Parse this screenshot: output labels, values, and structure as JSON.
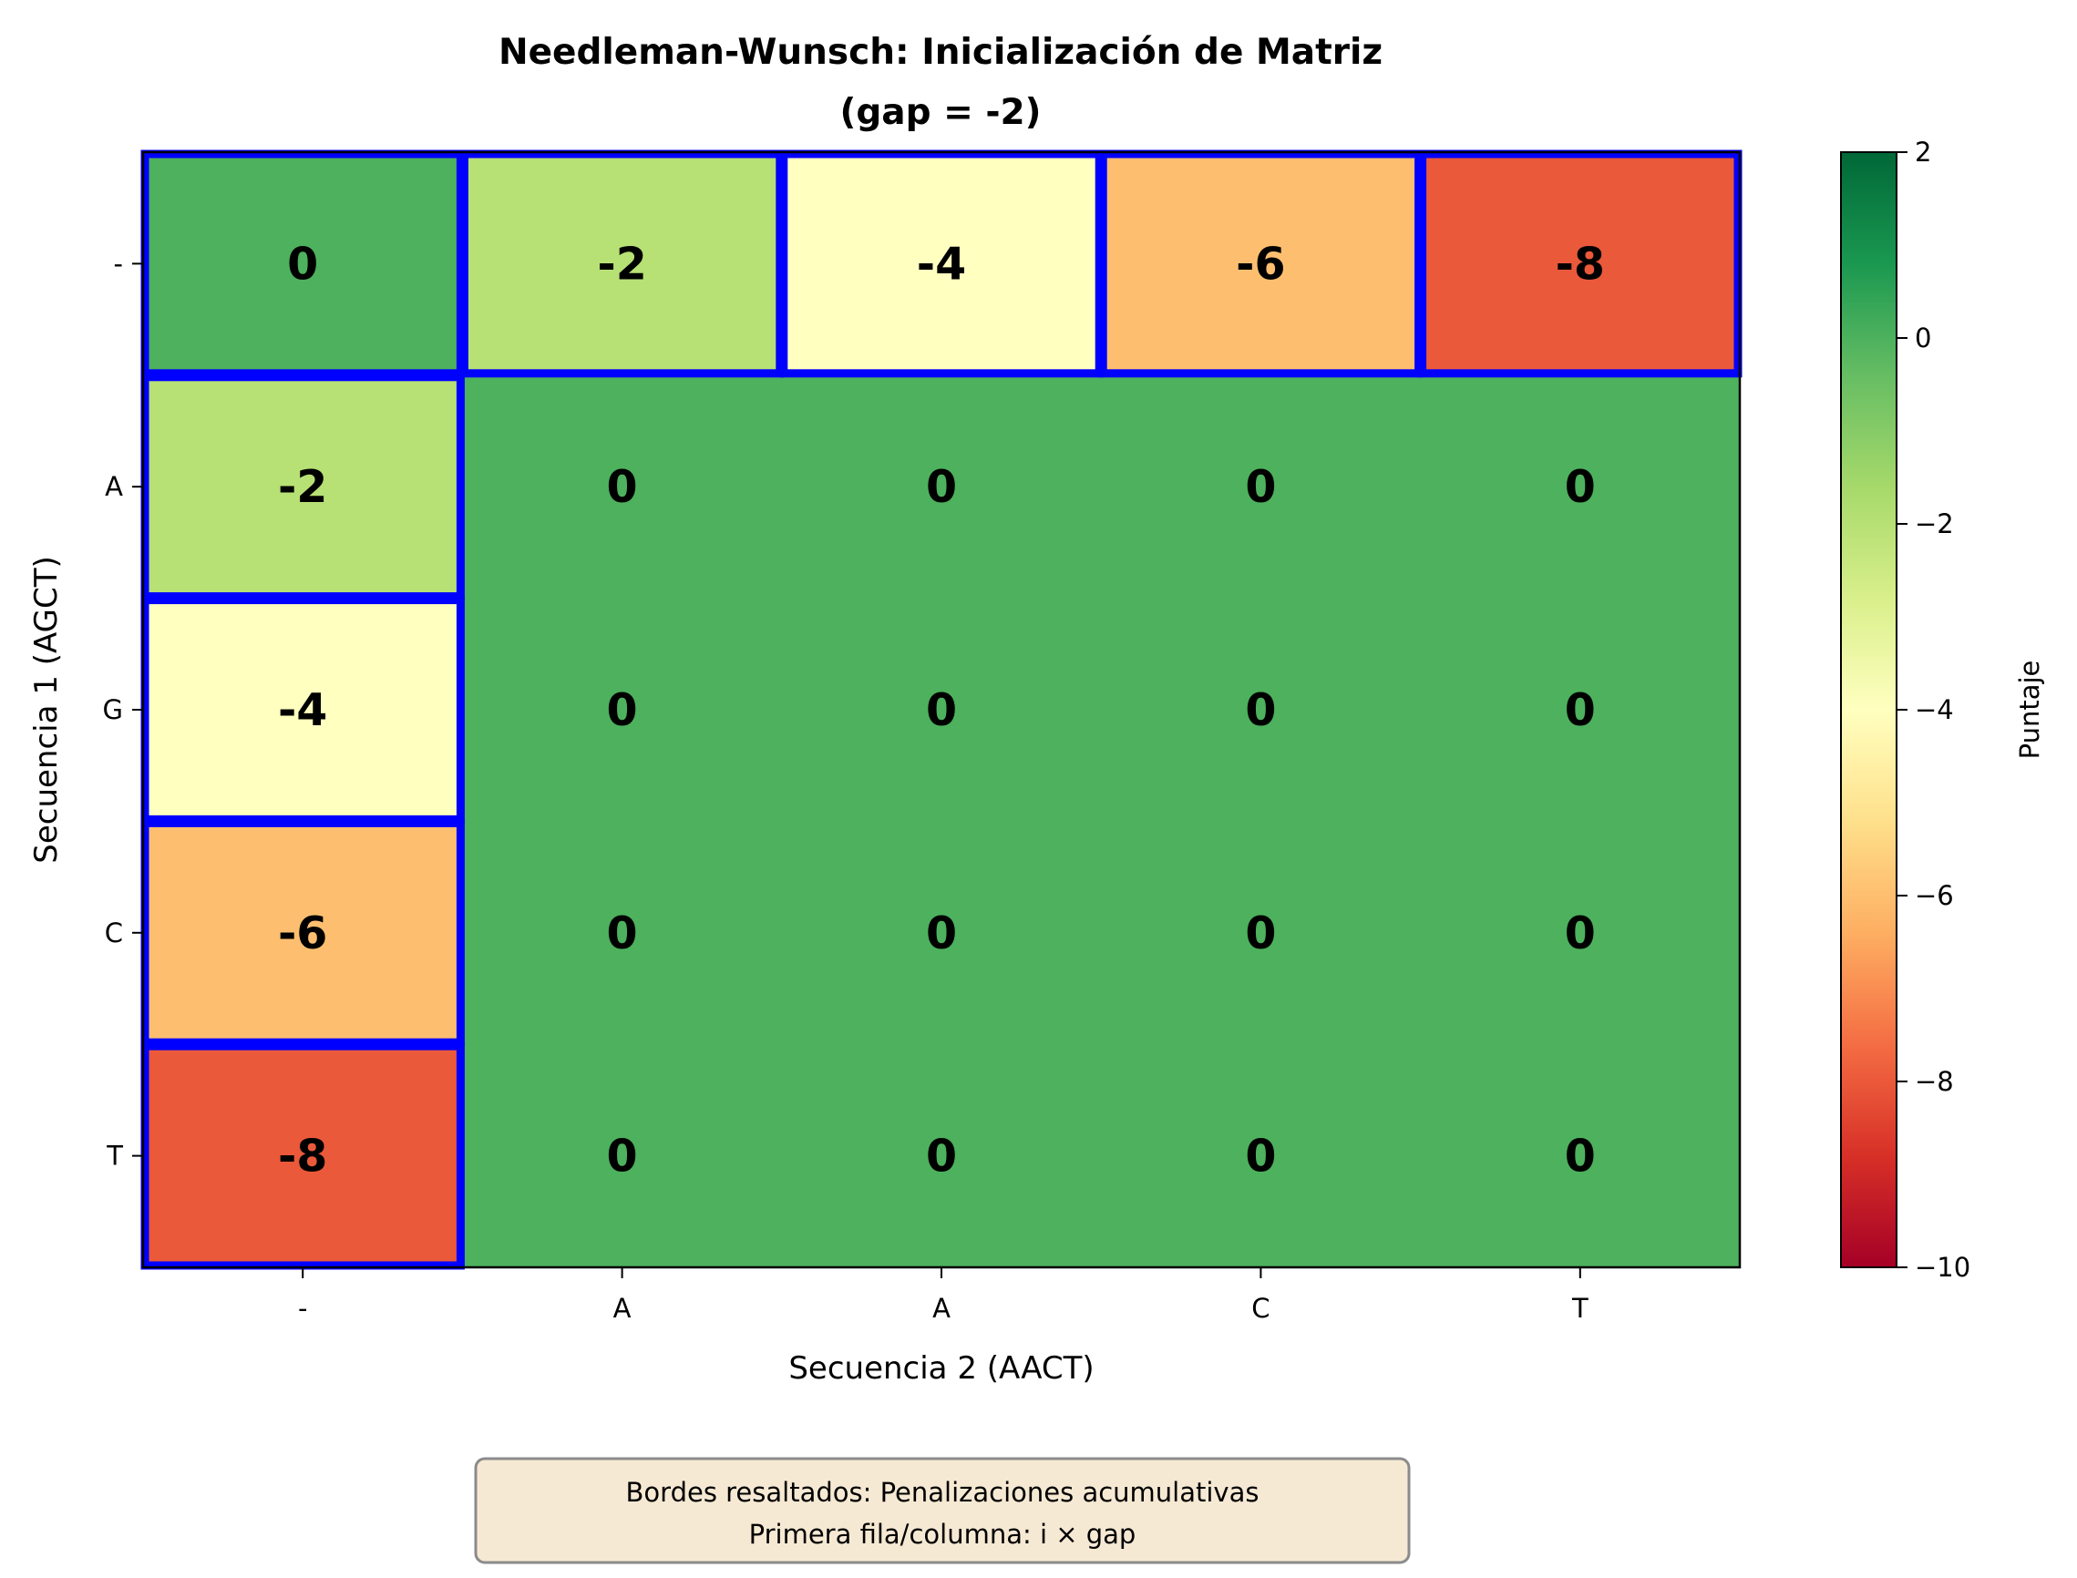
{
  "chart_data": {
    "type": "heatmap",
    "title_line1": "Needleman-Wunsch: Inicialización de Matriz",
    "title_line2": "(gap = -2)",
    "xlabel": "Secuencia 2 (AACT)",
    "ylabel": "Secuencia 1 (AGCT)",
    "x_categories": [
      "-",
      "A",
      "A",
      "C",
      "T"
    ],
    "y_categories": [
      "-",
      "A",
      "G",
      "C",
      "T"
    ],
    "values": [
      [
        0,
        -2,
        -4,
        -6,
        -8
      ],
      [
        -2,
        0,
        0,
        0,
        0
      ],
      [
        -4,
        0,
        0,
        0,
        0
      ],
      [
        -6,
        0,
        0,
        0,
        0
      ],
      [
        -8,
        0,
        0,
        0,
        0
      ]
    ],
    "colorbar": {
      "label": "Puntaje",
      "vmin": -10,
      "vmax": 2,
      "ticks": [
        2,
        0,
        -2,
        -4,
        -6,
        -8,
        -10
      ],
      "tick_labels": [
        "2",
        "0",
        "−2",
        "−4",
        "−6",
        "−8",
        "−10"
      ],
      "colormap": "RdYlGn"
    },
    "highlighted_borders": "first row and first column",
    "highlight_color": "#0000ff",
    "annotation": {
      "line1": "Bordes resaltados: Penalizaciones acumulativas",
      "line2": "Primera fila/columna: i × gap",
      "background": "#f5e6cc"
    },
    "grid": false
  }
}
